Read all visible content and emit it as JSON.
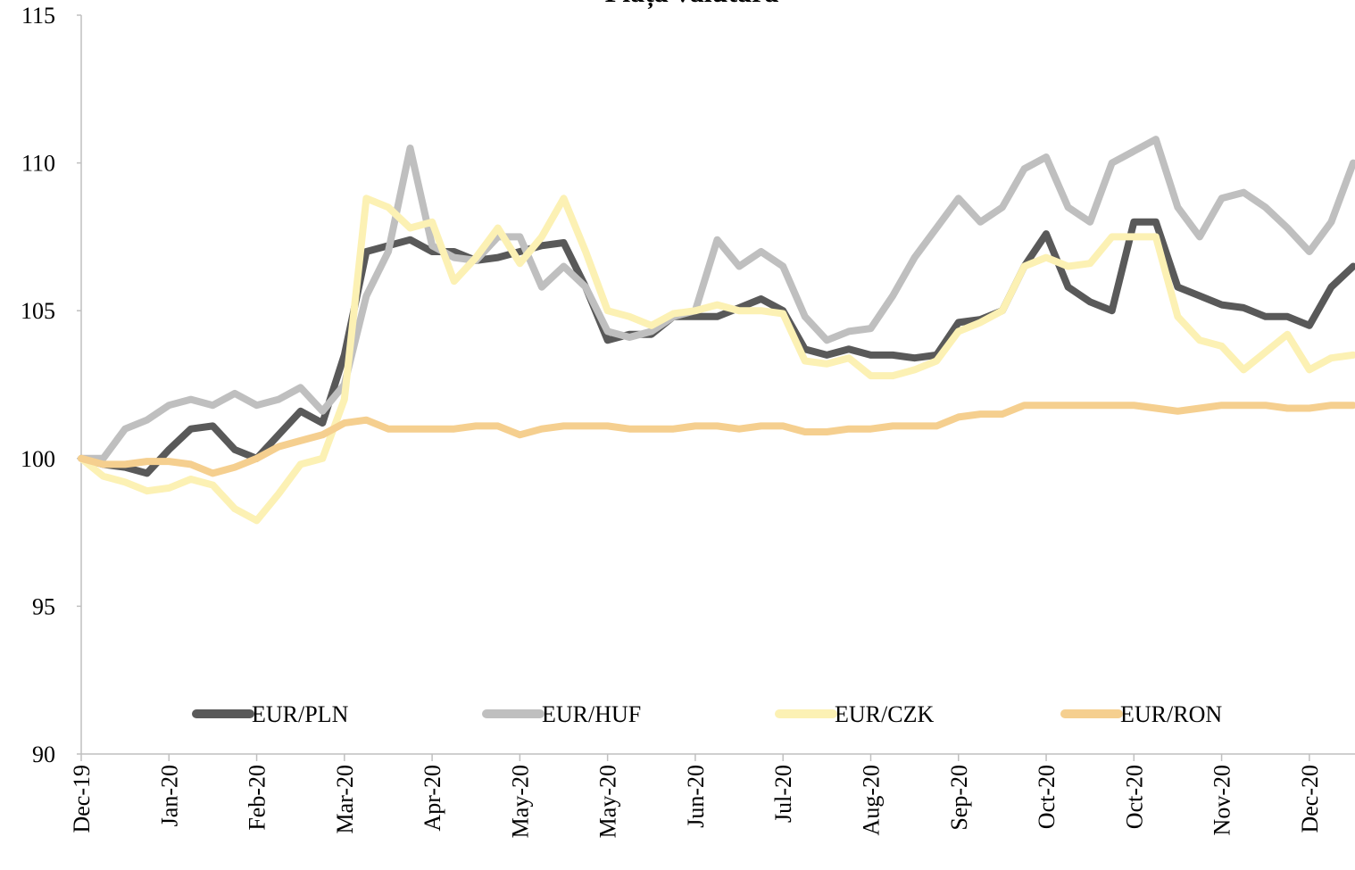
{
  "chart_data": {
    "type": "line",
    "title": "Piața valutară",
    "categories": [
      "Dec-19",
      null,
      null,
      null,
      "Jan-20",
      null,
      null,
      null,
      "Feb-20",
      null,
      null,
      null,
      "Mar-20",
      null,
      null,
      null,
      "Apr-20",
      null,
      null,
      null,
      "May-20",
      null,
      null,
      null,
      "May-20",
      null,
      null,
      null,
      "Jun-20",
      null,
      null,
      null,
      "Jul-20",
      null,
      null,
      null,
      "Aug-20",
      null,
      null,
      null,
      "Sep-20",
      null,
      null,
      null,
      "Oct-20",
      null,
      null,
      null,
      "Oct-20",
      null,
      null,
      null,
      "Nov-20",
      null,
      null,
      null,
      "Dec-20",
      null,
      null
    ],
    "series": [
      {
        "name": "EUR/PLN",
        "color": "#595959",
        "values": [
          100,
          99.8,
          99.7,
          99.5,
          100.3,
          101,
          101.1,
          100.3,
          100.0,
          100.8,
          101.6,
          101.2,
          103.5,
          107.0,
          107.2,
          107.4,
          107.0,
          107.0,
          106.7,
          106.8,
          107.0,
          107.2,
          107.3,
          105.8,
          104.0,
          104.2,
          104.2,
          104.8,
          104.8,
          104.8,
          105.1,
          105.4,
          105.0,
          103.7,
          103.5,
          103.7,
          103.5,
          103.5,
          103.4,
          103.5,
          104.6,
          104.7,
          105.0,
          106.5,
          107.6,
          105.8,
          105.3,
          105.0,
          108.0,
          108.0,
          105.8,
          105.5,
          105.2,
          105.1,
          104.8,
          104.8,
          104.5,
          105.8,
          106.5
        ]
      },
      {
        "name": "EUR/HUF",
        "color": "#bfbfbf",
        "values": [
          100,
          100.0,
          101.0,
          101.3,
          101.8,
          102.0,
          101.8,
          102.2,
          101.8,
          102.0,
          102.4,
          101.6,
          102.5,
          105.5,
          107.0,
          110.5,
          107.2,
          106.8,
          106.7,
          107.5,
          107.5,
          105.8,
          106.5,
          105.8,
          104.3,
          104.1,
          104.3,
          104.8,
          105.0,
          107.4,
          106.5,
          107.0,
          106.5,
          104.8,
          104.0,
          104.3,
          104.4,
          105.5,
          106.8,
          107.8,
          108.8,
          108.0,
          108.5,
          109.8,
          110.2,
          108.5,
          108.0,
          110.0,
          110.4,
          110.8,
          108.5,
          107.5,
          108.8,
          109.0,
          108.5,
          107.8,
          107.0,
          108.0,
          110.0
        ]
      },
      {
        "name": "EUR/CZK",
        "color": "#fcf1b4",
        "values": [
          100,
          99.4,
          99.2,
          98.9,
          99.0,
          99.3,
          99.1,
          98.3,
          97.9,
          98.8,
          99.8,
          100.0,
          102.0,
          108.8,
          108.5,
          107.8,
          108.0,
          106.0,
          106.8,
          107.8,
          106.6,
          107.5,
          108.8,
          107.0,
          105.0,
          104.8,
          104.5,
          104.9,
          105.0,
          105.2,
          105.0,
          105.0,
          104.9,
          103.3,
          103.2,
          103.4,
          102.8,
          102.8,
          103.0,
          103.3,
          104.3,
          104.6,
          105.0,
          106.5,
          106.8,
          106.5,
          106.6,
          107.5,
          107.5,
          107.5,
          104.8,
          104.0,
          103.8,
          103.0,
          103.6,
          104.2,
          103.0,
          103.4,
          103.5
        ]
      },
      {
        "name": "EUR/RON",
        "color": "#f5cf8f",
        "values": [
          100,
          99.8,
          99.8,
          99.9,
          99.9,
          99.8,
          99.5,
          99.7,
          100.0,
          100.4,
          100.6,
          100.8,
          101.2,
          101.3,
          101.0,
          101.0,
          101.0,
          101.0,
          101.1,
          101.1,
          100.8,
          101.0,
          101.1,
          101.1,
          101.1,
          101.0,
          101.0,
          101.0,
          101.1,
          101.1,
          101.0,
          101.1,
          101.1,
          100.9,
          100.9,
          101.0,
          101.0,
          101.1,
          101.1,
          101.1,
          101.4,
          101.5,
          101.5,
          101.8,
          101.8,
          101.8,
          101.8,
          101.8,
          101.8,
          101.7,
          101.6,
          101.7,
          101.8,
          101.8,
          101.8,
          101.7,
          101.7,
          101.8,
          101.8
        ]
      }
    ],
    "ylim": [
      90,
      115
    ],
    "yticks": [
      90,
      95,
      100,
      105,
      110,
      115
    ],
    "grid": false,
    "legend": "bottom"
  }
}
